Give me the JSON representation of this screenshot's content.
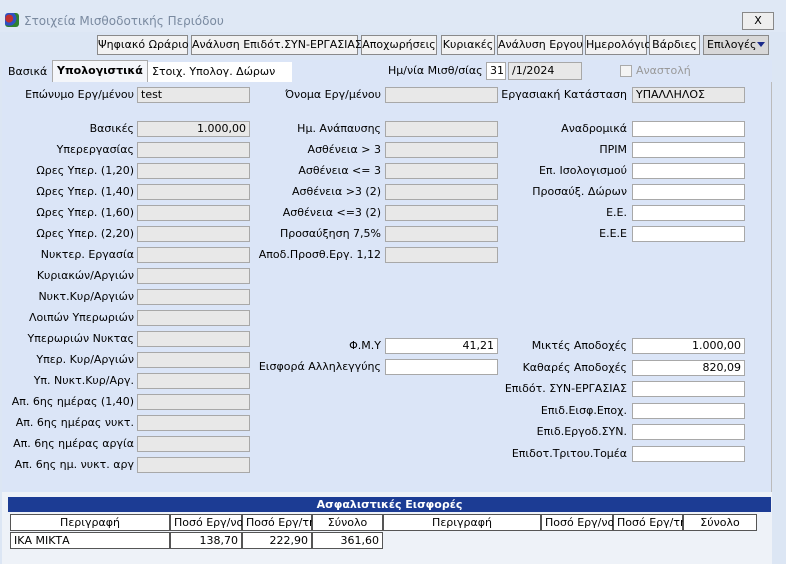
{
  "window": {
    "title": "Στοιχεία Μισθοδοτικής Περιόδου",
    "close": "X"
  },
  "toolbar": {
    "buttons": [
      "Ψηφιακό Ωράριο",
      "Ανάλυση Επιδότ.ΣΥΝ-ΕΡΓΑΣΙΑΣ",
      "Αποχωρήσεις",
      "Κυριακές",
      "Ανάλυση Εργου",
      "Ημερολόγιο",
      "Βάρδιες"
    ],
    "menu": "Επιλογές"
  },
  "tabs": [
    "Βασικά",
    "Υπολογιστικά",
    "Στοιχ. Υπολογ. Δώρων"
  ],
  "payroll_date": {
    "label": "Ημ/νία Μισθ/σίας",
    "day": "31",
    "month_year": "/1/2024"
  },
  "suspension": {
    "label": "Αναστολή"
  },
  "header_fields": [
    {
      "label": "Επώνυμο Εργ/μένου",
      "value": "test"
    },
    {
      "label": "Όνομα Εργ/μένου"
    },
    {
      "label": "Εργασιακή Κατάσταση",
      "value": "ΥΠΑΛΛΗΛΟΣ"
    }
  ],
  "column1": [
    {
      "label": "Βασικές",
      "value": "1.000,00"
    },
    {
      "label": "Υπερεργασίας"
    },
    {
      "label": "Ωρες Υπερ. (1,20)"
    },
    {
      "label": "Ωρες Υπερ. (1,40)"
    },
    {
      "label": "Ωρες Υπερ. (1,60)"
    },
    {
      "label": "Ωρες Υπερ. (2,20)"
    },
    {
      "label": "Νυκτερ. Εργασία"
    },
    {
      "label": "Κυριακών/Αργιών"
    },
    {
      "label": "Νυκτ.Κυρ/Αργιών"
    },
    {
      "label": "Λοιπών Υπερωριών"
    },
    {
      "label": "Υπερωριών Νυκτας"
    },
    {
      "label": "Υπερ. Κυρ/Αργιών"
    },
    {
      "label": "Υπ. Νυκτ.Κυρ/Αργ."
    },
    {
      "label": "Απ. 6ης ημέρας (1,40)"
    },
    {
      "label": "Απ. 6ης ημέρας νυκτ."
    },
    {
      "label": "Απ. 6ης ημέρας αργία"
    },
    {
      "label": "Απ. 6ης ημ. νυκτ. αργ"
    }
  ],
  "column2": {
    "upper": [
      {
        "label": "Ημ. Ανάπαυσης"
      },
      {
        "label": "Ασθένεια > 3"
      },
      {
        "label": "Ασθένεια <= 3"
      },
      {
        "label": "Ασθένεια >3 (2)"
      },
      {
        "label": "Ασθένεια <=3 (2)"
      },
      {
        "label": "Προσαύξηση 7,5%"
      },
      {
        "label": "Αποδ.Προσθ.Εργ. 1,12"
      }
    ],
    "lower": [
      {
        "label": "Φ.Μ.Υ",
        "value": "41,21"
      },
      {
        "label": "Εισφορά Αλληλεγγύης"
      }
    ]
  },
  "column3": {
    "upper": [
      {
        "label": "Αναδρομικά"
      },
      {
        "label": "ΠΡΙΜ"
      },
      {
        "label": "Επ. Ισολογισμού"
      },
      {
        "label": "Προσαύξ. Δώρων"
      },
      {
        "label": "Ε.Ε."
      },
      {
        "label": "Ε.Ε.Ε"
      }
    ],
    "lower": [
      {
        "label": "Μικτές Αποδοχές",
        "value": "1.000,00"
      },
      {
        "label": "Καθαρές Αποδοχές",
        "value": "820,09"
      },
      {
        "label": "Επιδότ. ΣΥΝ-ΕΡΓΑΣΙΑΣ"
      },
      {
        "label": "Επιδ.Εισφ.Εποχ."
      },
      {
        "label": "Επιδ.Εργοδ.ΣΥΝ."
      },
      {
        "label": "Επιδοτ.Τριτου.Τομέα"
      }
    ]
  },
  "contributions": {
    "title": "Ασφαλιστικές Εισφορές",
    "columns": [
      "Περιγραφή",
      "Ποσό Εργ/νου",
      "Ποσό Εργ/τη",
      "Σύνολο",
      "Περιγραφή",
      "Ποσό Εργ/νου",
      "Ποσό Εργ/τη",
      "Σύνολο"
    ],
    "rows": [
      [
        "ΙΚΑ ΜΙΚΤΑ",
        "138,70",
        "222,90",
        "361,60"
      ]
    ]
  }
}
